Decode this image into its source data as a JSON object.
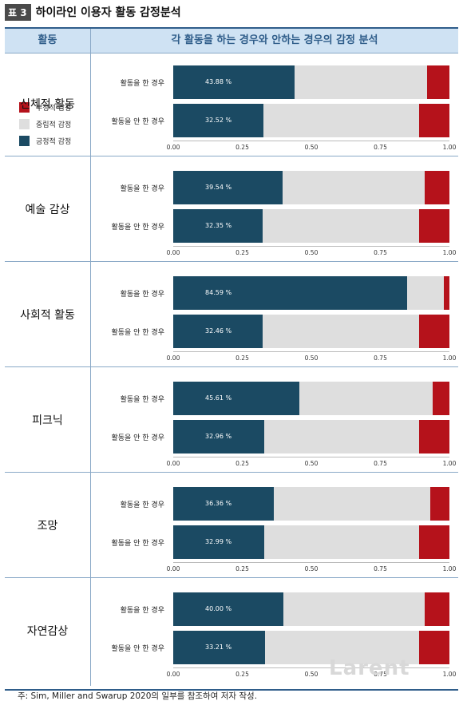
{
  "header": {
    "tag": "표 3",
    "title": "하이라인 이용자 활동 감정분석"
  },
  "table": {
    "col1": "활동",
    "col2": "각 활동을 하는 경우와 안하는 경우의 감정 분석"
  },
  "legend": [
    {
      "label": "부정적 감정",
      "color": "#b5121b"
    },
    {
      "label": "중립적 감정",
      "color": "#dedede"
    },
    {
      "label": "긍정적 감정",
      "color": "#1b4a63"
    }
  ],
  "chart_data": {
    "type": "bar",
    "orientation": "horizontal",
    "stacked": true,
    "xlim": [
      0,
      1
    ],
    "x_ticks": [
      "0.00",
      "0.25",
      "0.50",
      "0.75",
      "1.00"
    ],
    "row_labels": [
      "활동을 한 경우",
      "활동을 안 한 경우"
    ],
    "colors": {
      "positive": "#1b4a63",
      "neutral": "#dedede",
      "negative": "#b5121b"
    },
    "panels": [
      {
        "activity": "신체적 활동",
        "rows": [
          {
            "label": "활동을 한 경우",
            "positive": 0.4388,
            "neutral": 0.4812,
            "negative": 0.08,
            "pct_label": "43.88 %"
          },
          {
            "label": "활동을 안 한 경우",
            "positive": 0.3252,
            "neutral": 0.5648,
            "negative": 0.11,
            "pct_label": "32.52 %"
          }
        ]
      },
      {
        "activity": "예술 감상",
        "rows": [
          {
            "label": "활동을 한 경우",
            "positive": 0.3954,
            "neutral": 0.5146,
            "negative": 0.09,
            "pct_label": "39.54 %"
          },
          {
            "label": "활동을 안 한 경우",
            "positive": 0.3235,
            "neutral": 0.5665,
            "negative": 0.11,
            "pct_label": "32.35 %"
          }
        ]
      },
      {
        "activity": "사회적 활동",
        "rows": [
          {
            "label": "활동을 한 경우",
            "positive": 0.8459,
            "neutral": 0.1341,
            "negative": 0.02,
            "pct_label": "84.59 %"
          },
          {
            "label": "활동을 안 한 경우",
            "positive": 0.3246,
            "neutral": 0.5654,
            "negative": 0.11,
            "pct_label": "32.46 %"
          }
        ]
      },
      {
        "activity": "피크닉",
        "rows": [
          {
            "label": "활동을 한 경우",
            "positive": 0.4561,
            "neutral": 0.4839,
            "negative": 0.06,
            "pct_label": "45.61 %"
          },
          {
            "label": "활동을 안 한 경우",
            "positive": 0.3296,
            "neutral": 0.5604,
            "negative": 0.11,
            "pct_label": "32.96 %"
          }
        ]
      },
      {
        "activity": "조망",
        "rows": [
          {
            "label": "활동을 한 경우",
            "positive": 0.3636,
            "neutral": 0.5664,
            "negative": 0.07,
            "pct_label": "36.36 %"
          },
          {
            "label": "활동을 안 한 경우",
            "positive": 0.3299,
            "neutral": 0.5601,
            "negative": 0.11,
            "pct_label": "32.99 %"
          }
        ]
      },
      {
        "activity": "자연감상",
        "rows": [
          {
            "label": "활동을 한 경우",
            "positive": 0.4,
            "neutral": 0.51,
            "negative": 0.09,
            "pct_label": "40.00 %"
          },
          {
            "label": "활동을 안 한 경우",
            "positive": 0.3321,
            "neutral": 0.5579,
            "negative": 0.11,
            "pct_label": "33.21 %"
          }
        ]
      }
    ]
  },
  "footer": "주: Sim, Miller and Swarup 2020의 일부를 참조하여 저자 작성.",
  "watermark": "Larent"
}
